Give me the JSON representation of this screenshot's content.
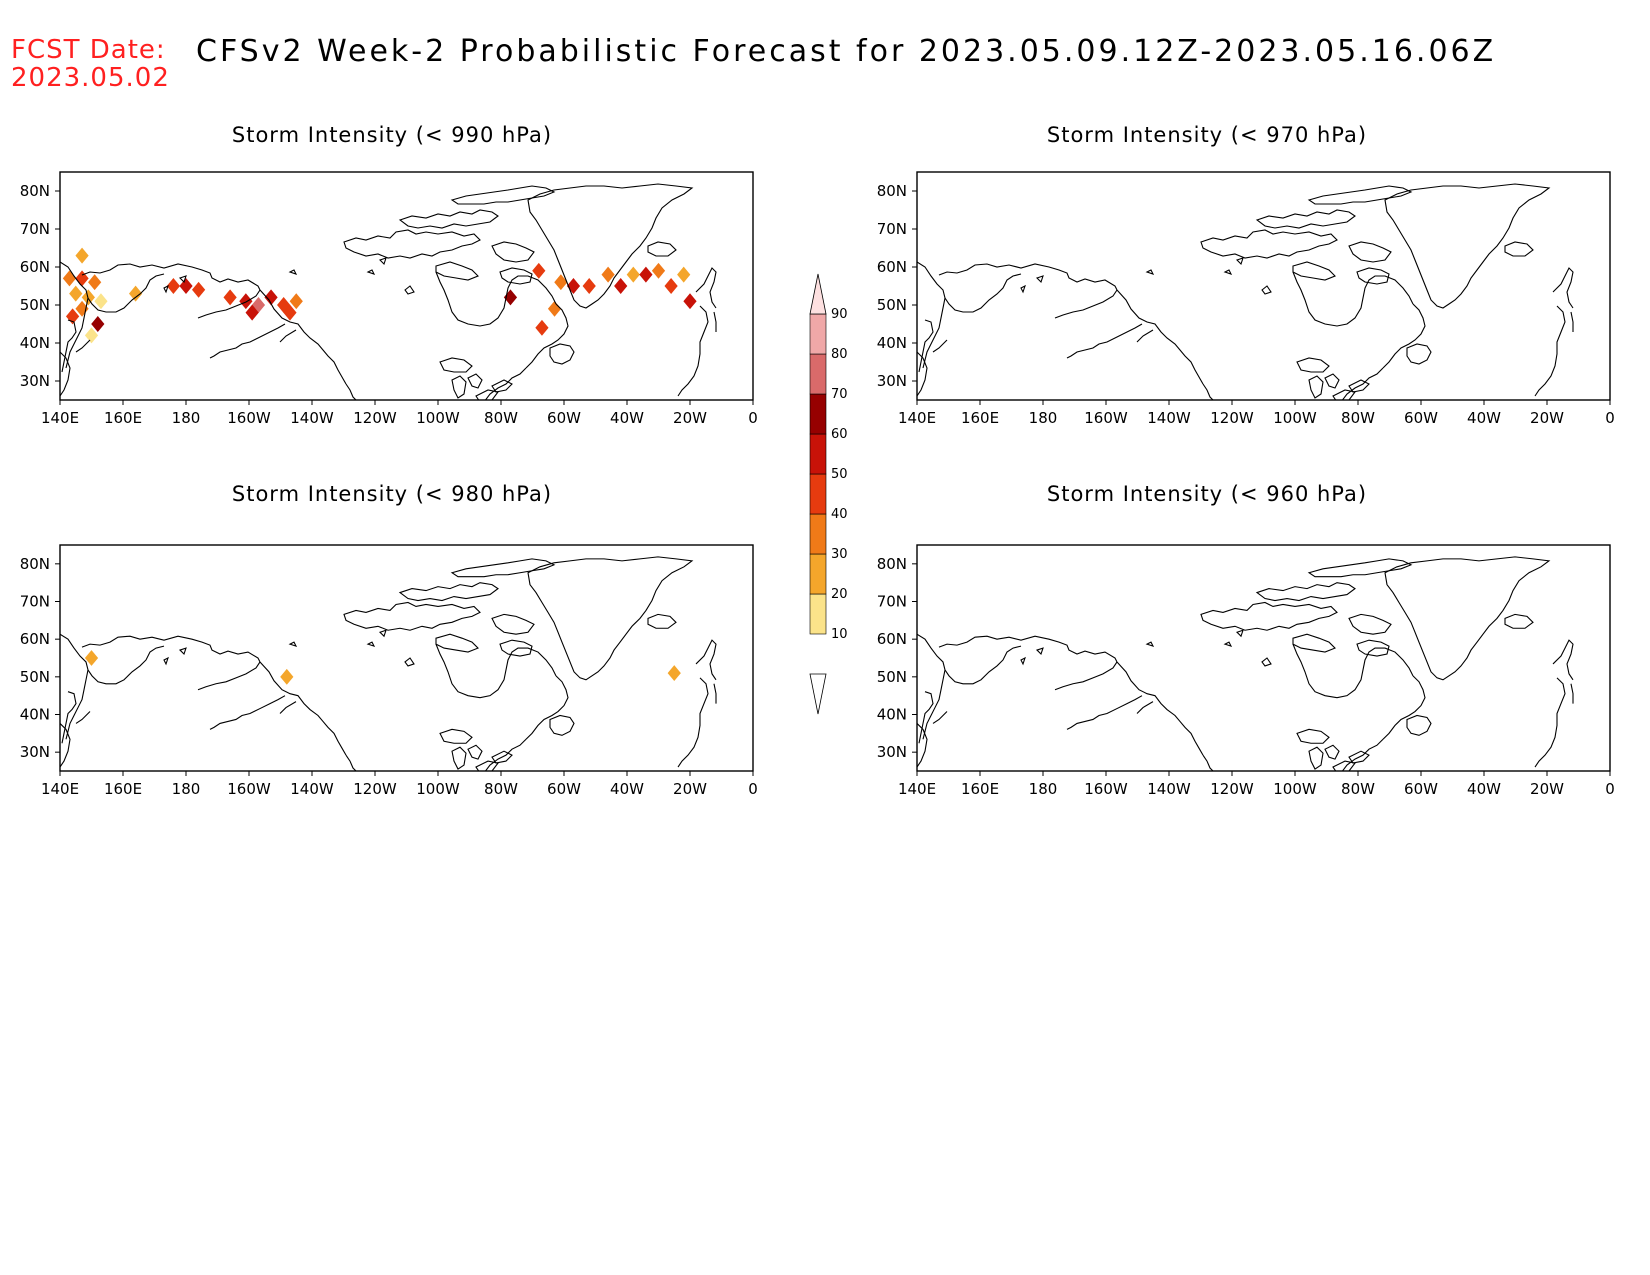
{
  "header": {
    "fcst_label": "FCST Date:",
    "fcst_date": "2023.05.02",
    "title": "CFSv2 Week-2 Probabilistic Forecast for 2023.05.09.12Z-2023.05.16.06Z"
  },
  "panels": [
    {
      "id": "p990",
      "title": "Storm Intensity (< 990 hPa)"
    },
    {
      "id": "p970",
      "title": "Storm Intensity (< 970 hPa)"
    },
    {
      "id": "p980",
      "title": "Storm Intensity (< 980 hPa)"
    },
    {
      "id": "p960",
      "title": "Storm Intensity (< 960 hPa)"
    }
  ],
  "axes": {
    "lon_labels": [
      "140E",
      "160E",
      "180",
      "160W",
      "140W",
      "120W",
      "100W",
      "80W",
      "60W",
      "40W",
      "20W",
      "0"
    ],
    "lat_labels": [
      "80N",
      "70N",
      "60N",
      "50N",
      "40N",
      "30N"
    ],
    "lon_range": [
      140,
      360
    ],
    "lat_range": [
      25,
      85
    ]
  },
  "colorbar": {
    "levels": [
      10,
      20,
      30,
      40,
      50,
      60,
      70,
      80,
      90
    ],
    "colors": [
      "#fff5c0",
      "#fbe38a",
      "#f4a62b",
      "#f07a18",
      "#e63b0f",
      "#c81208",
      "#960000",
      "#d96a6a",
      "#f0a8a8",
      "#fde0e0"
    ]
  },
  "chart_data": [
    {
      "type": "heatmap",
      "title": "Storm Intensity (< 990 hPa)",
      "units": "probability (%)",
      "cells": [
        {
          "lon": 143,
          "lat": 57,
          "v": 35
        },
        {
          "lon": 147,
          "lat": 57,
          "v": 45
        },
        {
          "lon": 151,
          "lat": 56,
          "v": 30
        },
        {
          "lon": 145,
          "lat": 53,
          "v": 20
        },
        {
          "lon": 149,
          "lat": 52,
          "v": 25
        },
        {
          "lon": 153,
          "lat": 51,
          "v": 15
        },
        {
          "lon": 147,
          "lat": 49,
          "v": 30
        },
        {
          "lon": 144,
          "lat": 47,
          "v": 40
        },
        {
          "lon": 152,
          "lat": 45,
          "v": 65
        },
        {
          "lon": 150,
          "lat": 42,
          "v": 15
        },
        {
          "lon": 147,
          "lat": 63,
          "v": 20
        },
        {
          "lon": 164,
          "lat": 53,
          "v": 25
        },
        {
          "lon": 176,
          "lat": 55,
          "v": 45
        },
        {
          "lon": 180,
          "lat": 55,
          "v": 50
        },
        {
          "lon": 184,
          "lat": 54,
          "v": 40
        },
        {
          "lon": 194,
          "lat": 52,
          "v": 40
        },
        {
          "lon": 199,
          "lat": 51,
          "v": 55
        },
        {
          "lon": 203,
          "lat": 50,
          "v": 75
        },
        {
          "lon": 207,
          "lat": 52,
          "v": 55
        },
        {
          "lon": 211,
          "lat": 50,
          "v": 45
        },
        {
          "lon": 215,
          "lat": 51,
          "v": 35
        },
        {
          "lon": 213,
          "lat": 48,
          "v": 40
        },
        {
          "lon": 201,
          "lat": 48,
          "v": 50
        },
        {
          "lon": 283,
          "lat": 52,
          "v": 65
        },
        {
          "lon": 292,
          "lat": 59,
          "v": 40
        },
        {
          "lon": 293,
          "lat": 44,
          "v": 40
        },
        {
          "lon": 297,
          "lat": 49,
          "v": 35
        },
        {
          "lon": 299,
          "lat": 56,
          "v": 35
        },
        {
          "lon": 303,
          "lat": 55,
          "v": 50
        },
        {
          "lon": 308,
          "lat": 55,
          "v": 45
        },
        {
          "lon": 314,
          "lat": 58,
          "v": 30
        },
        {
          "lon": 318,
          "lat": 55,
          "v": 50
        },
        {
          "lon": 322,
          "lat": 58,
          "v": 25
        },
        {
          "lon": 326,
          "lat": 58,
          "v": 55
        },
        {
          "lon": 330,
          "lat": 59,
          "v": 30
        },
        {
          "lon": 334,
          "lat": 55,
          "v": 40
        },
        {
          "lon": 338,
          "lat": 58,
          "v": 20
        },
        {
          "lon": 340,
          "lat": 51,
          "v": 55
        }
      ]
    },
    {
      "type": "heatmap",
      "title": "Storm Intensity (< 970 hPa)",
      "units": "probability (%)",
      "cells": []
    },
    {
      "type": "heatmap",
      "title": "Storm Intensity (< 980 hPa)",
      "units": "probability (%)",
      "cells": [
        {
          "lon": 150,
          "lat": 55,
          "v": 20
        },
        {
          "lon": 212,
          "lat": 50,
          "v": 25
        },
        {
          "lon": 335,
          "lat": 51,
          "v": 20
        }
      ]
    },
    {
      "type": "heatmap",
      "title": "Storm Intensity (< 960 hPa)",
      "units": "probability (%)",
      "cells": []
    }
  ]
}
